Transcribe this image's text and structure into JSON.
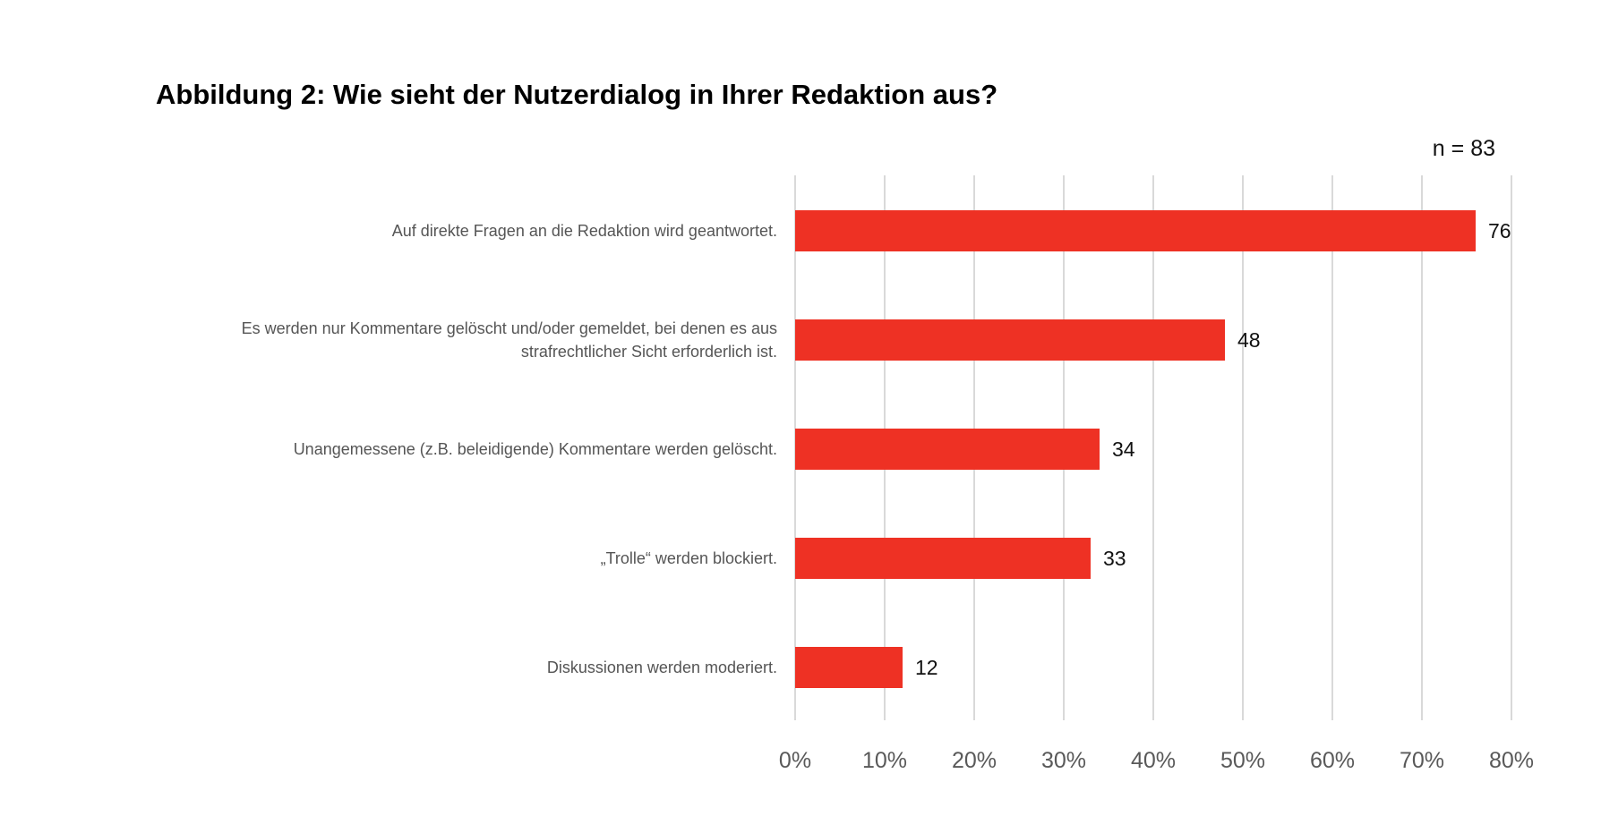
{
  "chart_data": {
    "type": "bar",
    "orientation": "horizontal",
    "title": "Abbildung 2: Wie sieht der Nutzerdialog in Ihrer Redaktion aus?",
    "annotation": "n = 83",
    "categories": [
      "Auf direkte Fragen an die Redaktion wird geantwortet.",
      "Es werden nur Kommentare gelöscht und/oder gemeldet, bei denen es aus strafrechtlicher Sicht erforderlich ist.",
      "Unangemessene (z.B. beleidigende) Kommentare werden gelöscht.",
      "„Trolle“ werden blockiert.",
      "Diskussionen werden moderiert."
    ],
    "category_lines": [
      [
        "Auf direkte Fragen an die Redaktion wird geantwortet."
      ],
      [
        "Es werden nur Kommentare gelöscht und/oder gemeldet, bei denen es aus",
        "strafrechtlicher Sicht erforderlich ist."
      ],
      [
        "Unangemessene (z.B. beleidigende) Kommentare werden gelöscht."
      ],
      [
        "„Trolle“ werden blockiert."
      ],
      [
        "Diskussionen werden moderiert."
      ]
    ],
    "values": [
      76,
      48,
      34,
      33,
      12
    ],
    "data_labels": [
      "76",
      "48",
      "34",
      "33",
      "12"
    ],
    "xlim": [
      0,
      80
    ],
    "xticks": [
      0,
      10,
      20,
      30,
      40,
      50,
      60,
      70,
      80
    ],
    "xtick_labels": [
      "0%",
      "10%",
      "20%",
      "30%",
      "40%",
      "50%",
      "60%",
      "70%",
      "80%"
    ],
    "xlabel": "",
    "ylabel": "",
    "grid": "vertical",
    "bar_color": "#EE3124",
    "grid_color": "#D9D9D9"
  }
}
